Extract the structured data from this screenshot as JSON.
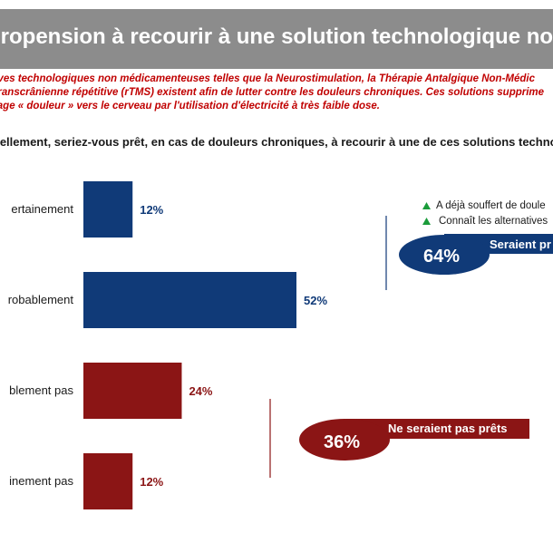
{
  "header": {
    "title": "propension à recourir à une solution technologique non médic"
  },
  "intro": {
    "lines": [
      "atives technologiques non médicamenteuses telles que la Neurostimulation, la Thérapie Antalgique Non-Médic",
      "e transcrânienne répétitive (rTMS) existent afin de lutter contre les douleurs chroniques. Ces solutions supprime",
      "ssage « douleur » vers le cerveau par l'utilisation d'électricité à très faible dose."
    ]
  },
  "question": "onnellement, seriez-vous prêt, en cas de douleurs chroniques, à recourir à une de ces solutions techno",
  "chart_data": {
    "type": "bar",
    "orientation": "horizontal",
    "categories": [
      "ertainement",
      "robablement",
      "blement pas",
      "inement pas"
    ],
    "values": [
      12,
      52,
      24,
      12
    ],
    "value_labels": [
      "12%",
      "52%",
      "24%",
      "12%"
    ],
    "value_unit": "%",
    "colors": [
      "#103a78",
      "#103a78",
      "#8b1515",
      "#8b1515"
    ],
    "xlim": [
      0,
      100
    ],
    "grid": false
  },
  "summary": {
    "positive": {
      "percent": "64%",
      "label": "Seraient pr",
      "color": "#103a78"
    },
    "negative": {
      "percent": "36%",
      "label": "Ne seraient pas prêts",
      "color": "#8b1515"
    }
  },
  "legend": {
    "marker_color": "#1a9c3a",
    "items": [
      "A déjà souffert de doule",
      "Connaît les alternatives"
    ]
  }
}
